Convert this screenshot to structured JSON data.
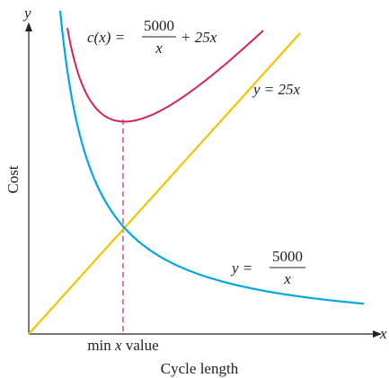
{
  "axes": {
    "x": "x",
    "y": "y",
    "x_label": "Cycle length",
    "y_label": "Cost",
    "min_label": {
      "pre": "min",
      "var": "x",
      "post": "value"
    }
  },
  "labels": {
    "cost_curve": {
      "lhs": "c(x) =",
      "numerator": "5000",
      "denominator": "x",
      "rest": "+ 25x"
    },
    "line": "y = 25x",
    "hyperbola": {
      "lhs": "y =",
      "numerator": "5000",
      "denominator": "x"
    }
  }
}
